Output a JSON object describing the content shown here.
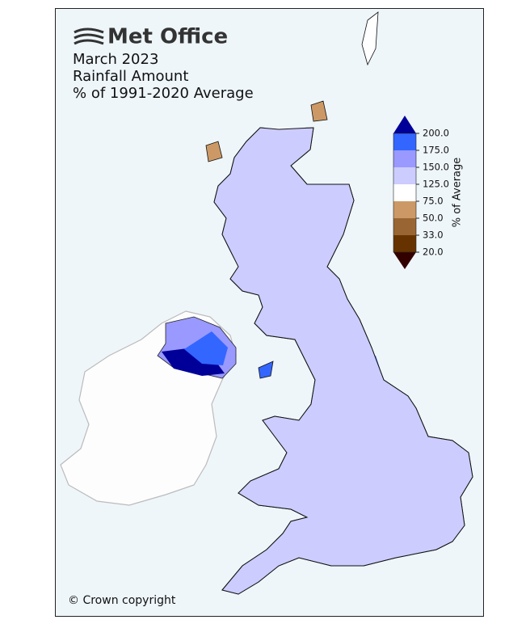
{
  "header": {
    "logo": "Met Office",
    "title_lines": [
      "March 2023",
      "Rainfall Amount",
      "% of 1991-2020 Average"
    ]
  },
  "colorbar": {
    "label": "% of Average",
    "ticks": [
      {
        "value": 200,
        "label": "200.0"
      },
      {
        "value": 175,
        "label": "175.0"
      },
      {
        "value": 150,
        "label": "150.0"
      },
      {
        "value": 125,
        "label": "125.0"
      },
      {
        "value": 75,
        "label": "75.0"
      },
      {
        "value": 50,
        "label": "50.0"
      },
      {
        "value": 33,
        "label": "33.0"
      },
      {
        "value": 20,
        "label": "20.0"
      }
    ],
    "colors": [
      "#000099",
      "#3366ff",
      "#9999ff",
      "#ccccff",
      "#ffffff",
      "#cc9966",
      "#996633",
      "#663300",
      "#330000"
    ]
  },
  "footer": {
    "copyright": "© Crown copyright"
  }
}
